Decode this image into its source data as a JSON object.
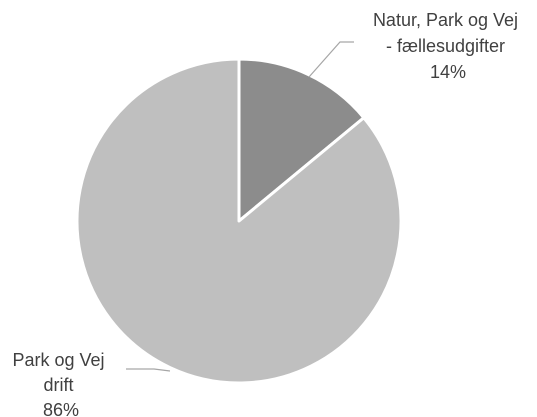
{
  "chart_data": {
    "type": "pie",
    "title": "",
    "slices": [
      {
        "label_lines": [
          "Natur, Park og Vej",
          "- fællesudgifter"
        ],
        "percent_label": "14%",
        "value": 14,
        "color": "#8c8c8c"
      },
      {
        "label_lines": [
          "Park og Vej",
          "drift"
        ],
        "percent_label": "86%",
        "value": 86,
        "color": "#bfbfbf"
      }
    ],
    "label_color": "#404040",
    "leader_color": "#a6a6a6",
    "slice_border_color": "#ffffff",
    "legend": "none"
  }
}
